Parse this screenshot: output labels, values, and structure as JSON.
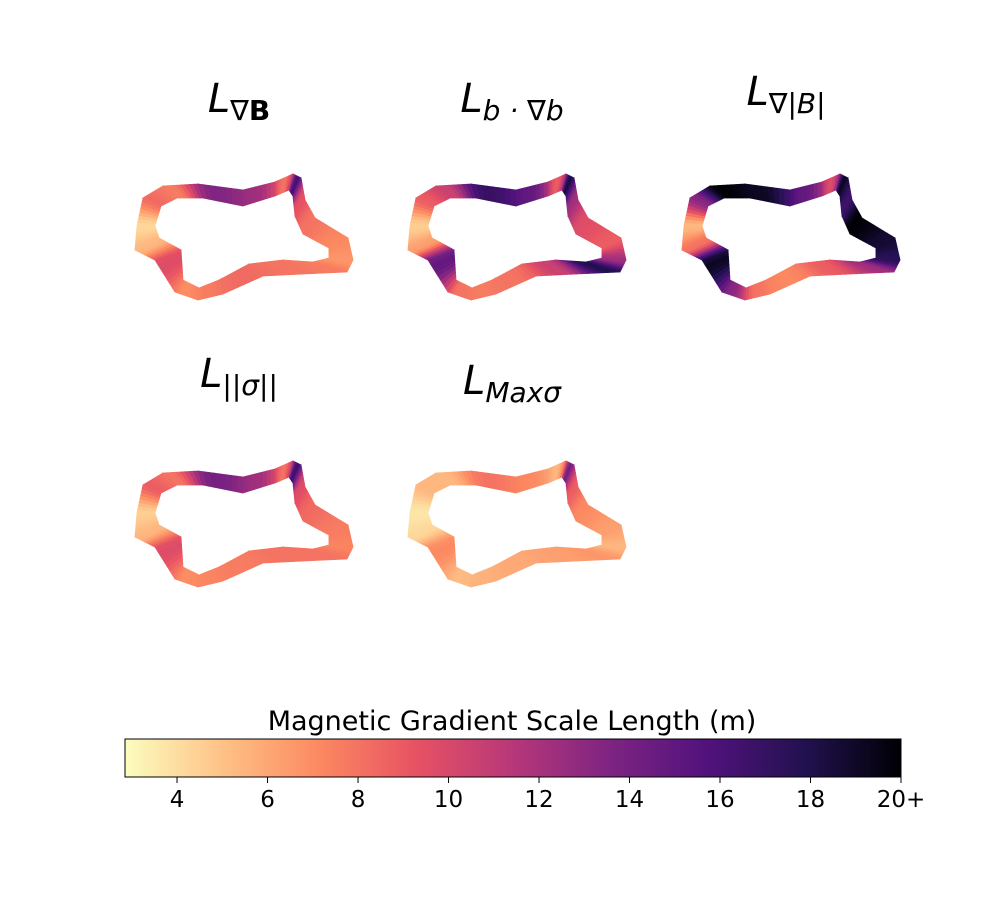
{
  "panels": [
    {
      "sym": "L",
      "sub": "∇",
      "sub2": "B",
      "sub2_bold": true,
      "style": "upper",
      "profile": [
        0.08,
        0.32,
        0.28,
        0.62,
        0.55,
        0.3,
        0.78,
        0.38,
        0.3,
        0.25,
        0.22,
        0.28,
        0.3,
        0.32,
        0.28,
        0.24,
        0.4,
        0.15
      ]
    },
    {
      "sym": "L",
      "sub": "b · ∇b",
      "sub2": "",
      "sub2_bold": false,
      "style": "lower",
      "profile": [
        0.1,
        0.35,
        0.45,
        0.82,
        0.7,
        0.35,
        0.9,
        0.55,
        0.4,
        0.35,
        0.55,
        0.88,
        0.45,
        0.3,
        0.28,
        0.3,
        0.7,
        0.2
      ]
    },
    {
      "sym": "L",
      "sub": "∇|B|",
      "sub2": "",
      "sub2_bold": false,
      "style": "upper",
      "profile": [
        0.15,
        0.6,
        1.0,
        0.95,
        0.7,
        0.4,
        0.95,
        0.8,
        1.0,
        0.92,
        0.85,
        0.55,
        0.35,
        0.25,
        0.3,
        0.6,
        0.95,
        0.3
      ]
    },
    {
      "sym": "L",
      "sub": "||σ||",
      "sub2": "",
      "sub2_bold": false,
      "style": "upper",
      "profile": [
        0.1,
        0.35,
        0.3,
        0.65,
        0.55,
        0.3,
        0.8,
        0.4,
        0.32,
        0.28,
        0.26,
        0.3,
        0.3,
        0.28,
        0.26,
        0.24,
        0.4,
        0.15
      ]
    },
    {
      "sym": "L",
      "sub": "Maxσ",
      "sub2": "",
      "sub2_bold": false,
      "style": "lower",
      "profile": [
        0.05,
        0.15,
        0.15,
        0.3,
        0.25,
        0.15,
        0.65,
        0.35,
        0.25,
        0.2,
        0.15,
        0.22,
        0.2,
        0.18,
        0.16,
        0.14,
        0.25,
        0.08
      ]
    }
  ],
  "colorbar": {
    "title": "Magnetic Gradient Scale Length (m)",
    "min": 2.85,
    "max": 20,
    "ticks": [
      {
        "value": 4,
        "label": "4"
      },
      {
        "value": 6,
        "label": "6"
      },
      {
        "value": 8,
        "label": "8"
      },
      {
        "value": 10,
        "label": "10"
      },
      {
        "value": 12,
        "label": "12"
      },
      {
        "value": 14,
        "label": "14"
      },
      {
        "value": 16,
        "label": "16"
      },
      {
        "value": 18,
        "label": "18"
      },
      {
        "value": 20,
        "label": "20+"
      }
    ],
    "colormap": [
      "#fcfdbf",
      "#fec287",
      "#fc8961",
      "#e75263",
      "#b73779",
      "#7e2482",
      "#51127c",
      "#221150",
      "#000004"
    ]
  }
}
